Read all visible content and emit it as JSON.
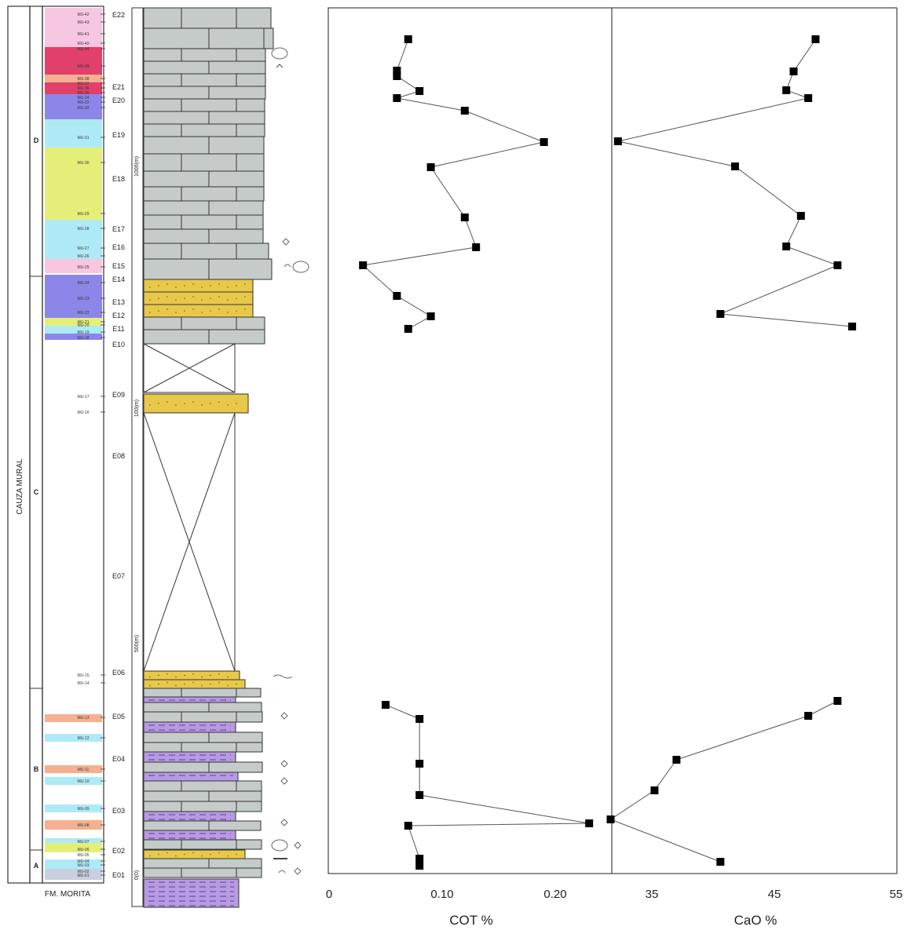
{
  "strat_column": {
    "formation_label": "CAUZA MURAL",
    "lower_formation_label": "FM. MORITA",
    "members": [
      "A",
      "B",
      "C",
      "D"
    ],
    "interval_labels": [
      "E01",
      "E02",
      "E03",
      "E04",
      "E05",
      "E06",
      "E07",
      "E08",
      "E09",
      "E10",
      "E11",
      "E12",
      "E13",
      "E14",
      "E15",
      "E16",
      "E17",
      "E18",
      "E19",
      "E20",
      "E21",
      "E22"
    ],
    "sample_labels": [
      "MU-01",
      "MU-02",
      "MU-03",
      "MU-04",
      "MU-05",
      "MU-06",
      "MU-07",
      "MU-08",
      "MU-09",
      "MU-10",
      "MU-11",
      "MU-12",
      "MU-13",
      "MU-14",
      "MU-15",
      "MU-16",
      "MU-17",
      "MU-18",
      "MU-19",
      "MU-20",
      "MU-21",
      "MU-22",
      "MU-23",
      "MU-24",
      "MU-25",
      "MU-26",
      "MU-27",
      "MU-28",
      "MU-29",
      "MU-30",
      "MU-31",
      "MU-32",
      "MU-33",
      "MU-34",
      "MU-35",
      "MU-36",
      "MU-37",
      "MU-38",
      "MU-39",
      "MU-40",
      "MU-41",
      "MU-42",
      "MU-43",
      "MU-44"
    ],
    "scale_labels": [
      "0(0)",
      "100(m)",
      "500(m)",
      "1000(m)",
      "150(m)"
    ],
    "colors": {
      "limestone": "#c5cbc9",
      "sandstone": "#e8c84a",
      "mudstone": "#b89ae0",
      "pink": "#f7c6e0",
      "red": "#e0406a",
      "salmon": "#f4b090",
      "blue_purple": "#8c86e8",
      "cyan": "#aeeaf6",
      "yellow_green": "#e6ee7a"
    }
  },
  "chart_data": [
    {
      "type": "line",
      "xlabel": "COT %",
      "xlim": [
        0,
        0.25
      ],
      "xticks": [
        "0",
        "0.10",
        "0.20"
      ],
      "marker": "square",
      "segments": [
        {
          "x": [
            0.07,
            0.06,
            0.06,
            0.08,
            0.06,
            0.12,
            0.19,
            0.09,
            0.12,
            0.13,
            0.03,
            0.06,
            0.09,
            0.07
          ],
          "y": [
            50,
            90,
            97,
            116,
            125,
            141,
            181,
            213,
            277,
            315,
            338,
            377,
            403,
            419
          ]
        },
        {
          "x": [
            0.05,
            0.08,
            0.08,
            0.08,
            0.23,
            0.07,
            0.08,
            0.08
          ],
          "y": [
            898,
            916,
            973,
            1013,
            1049,
            1052,
            1094,
            1103
          ]
        }
      ]
    },
    {
      "type": "line",
      "xlabel": "CaO %",
      "xlim": [
        30,
        55
      ],
      "xticks": [
        "35",
        "45",
        "55"
      ],
      "marker": "square",
      "segments": [
        {
          "x": [
            49.5,
            48,
            47.5,
            49,
            36,
            44,
            48.5,
            47.5,
            51,
            43,
            52
          ],
          "y": [
            50,
            91,
            115,
            125,
            180,
            212,
            275,
            314,
            338,
            400,
            416
          ]
        },
        {
          "x": [
            51,
            49,
            40,
            38.5,
            35.5,
            43
          ],
          "y": [
            893,
            912,
            968,
            1007,
            1044,
            1098
          ]
        }
      ]
    }
  ]
}
